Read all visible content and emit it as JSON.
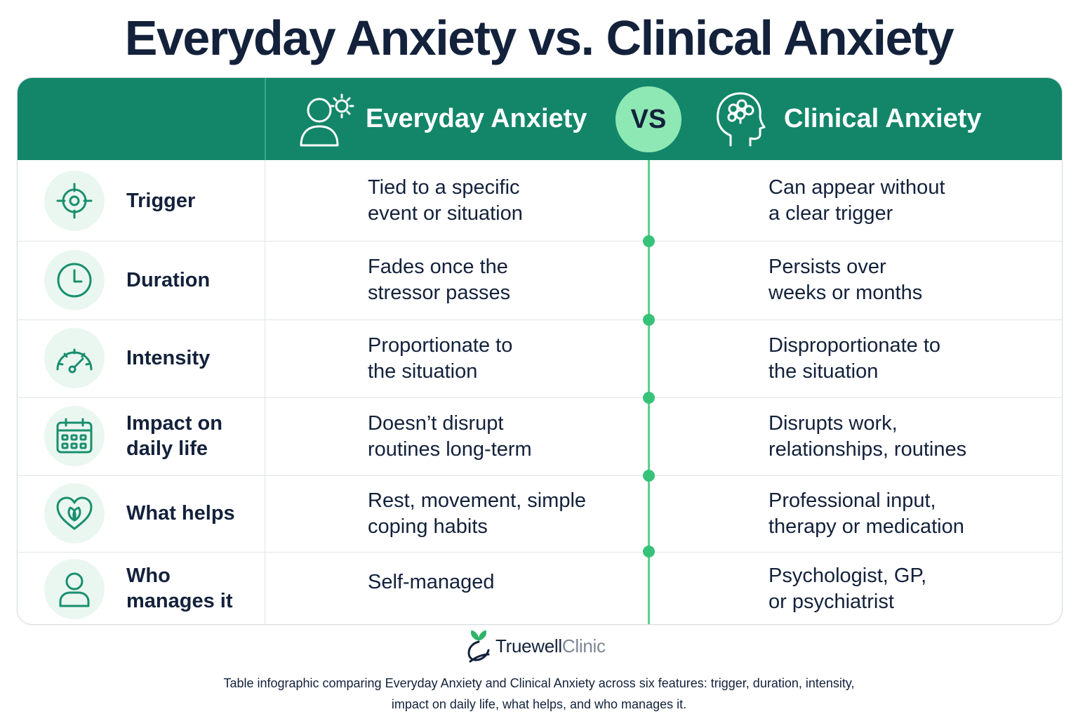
{
  "title": "Everyday Anxiety vs. Clinical Anxiety",
  "header": {
    "everyday_label": "Everyday Anxiety",
    "vs_label": "VS",
    "clinical_label": "Clinical Anxiety"
  },
  "rows": [
    {
      "feature": "Trigger",
      "icon": "target-icon",
      "everyday": "Tied to a specific\nevent or situation",
      "clinical": "Can appear without\na clear trigger"
    },
    {
      "feature": "Duration",
      "icon": "clock-icon",
      "everyday": "Fades once the\nstressor passes",
      "clinical": "Persists over\nweeks or months"
    },
    {
      "feature": "Intensity",
      "icon": "gauge-icon",
      "everyday": "Proportionate to\nthe situation",
      "clinical": "Disproportionate to\nthe situation"
    },
    {
      "feature": "Impact on\ndaily life",
      "icon": "calendar-icon",
      "everyday": "Doesn’t disrupt\nroutines long-term",
      "clinical": "Disrupts work,\nrelationships, routines"
    },
    {
      "feature": "What helps",
      "icon": "heart-leaf-icon",
      "everyday": "Rest, movement, simple\ncoping habits",
      "clinical": "Professional input,\ntherapy or medication"
    },
    {
      "feature": "Who\nmanages it",
      "icon": "person-icon",
      "everyday": "Self-managed",
      "clinical": "Psychologist, GP,\nor psychiatrist"
    }
  ],
  "brand": {
    "part1": "Truewell",
    "part2": "Clinic"
  },
  "caption": "Table infographic comparing Everyday Anxiety and Clinical Anxiety across six features: trigger, duration, intensity,\nimpact on daily life, what helps, and who manages it.",
  "colors": {
    "header_green": "#13866a",
    "vs_badge": "#8ee8b4",
    "center_line": "#5fd08c",
    "icon_bg": "#eaf7f1",
    "icon_stroke": "#1a8f6e",
    "text_dark": "#13213b"
  }
}
